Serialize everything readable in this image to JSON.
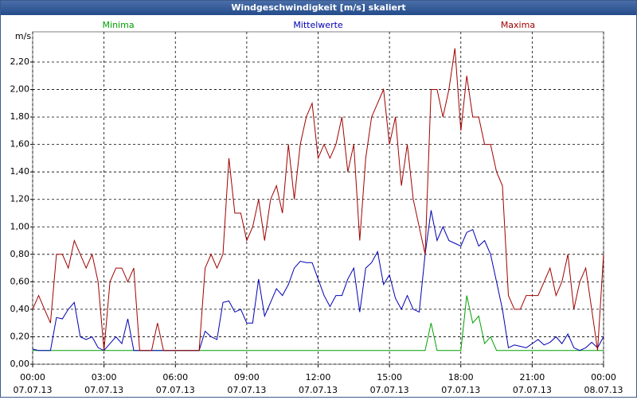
{
  "chart_data": {
    "type": "line",
    "title": "Windgeschwindigkeit [m/s] skaliert",
    "y_label": "m/s",
    "x": [
      0,
      0.25,
      0.5,
      0.75,
      1,
      1.25,
      1.5,
      1.75,
      2,
      2.25,
      2.5,
      2.75,
      3,
      3.25,
      3.5,
      3.75,
      4,
      4.25,
      4.5,
      4.75,
      5,
      5.25,
      5.5,
      5.75,
      6,
      6.25,
      6.5,
      6.75,
      7,
      7.25,
      7.5,
      7.75,
      8,
      8.25,
      8.5,
      8.75,
      9,
      9.25,
      9.5,
      9.75,
      10,
      10.25,
      10.5,
      10.75,
      11,
      11.25,
      11.5,
      11.75,
      12,
      12.25,
      12.5,
      12.75,
      13,
      13.25,
      13.5,
      13.75,
      14,
      14.25,
      14.5,
      14.75,
      15,
      15.25,
      15.5,
      15.75,
      16,
      16.25,
      16.5,
      16.75,
      17,
      17.25,
      17.5,
      17.75,
      18,
      18.25,
      18.5,
      18.75,
      19,
      19.25,
      19.5,
      19.75,
      20,
      20.25,
      20.5,
      20.75,
      21,
      21.25,
      21.5,
      21.75,
      22,
      22.25,
      22.5,
      22.75,
      23,
      23.25,
      23.5,
      23.75,
      24
    ],
    "series": [
      {
        "name": "Minima",
        "color": "#00a000",
        "values": [
          0.1,
          0.1,
          0.1,
          0.1,
          0.1,
          0.1,
          0.1,
          0.1,
          0.1,
          0.1,
          0.1,
          0.1,
          0.1,
          0.1,
          0.1,
          0.1,
          0.1,
          0.1,
          0.1,
          0.1,
          0.1,
          0.1,
          0.1,
          0.1,
          0.1,
          0.1,
          0.1,
          0.1,
          0.1,
          0.1,
          0.1,
          0.1,
          0.1,
          0.1,
          0.1,
          0.1,
          0.1,
          0.1,
          0.1,
          0.1,
          0.1,
          0.1,
          0.1,
          0.1,
          0.1,
          0.1,
          0.1,
          0.1,
          0.1,
          0.1,
          0.1,
          0.1,
          0.1,
          0.1,
          0.1,
          0.1,
          0.1,
          0.1,
          0.1,
          0.1,
          0.1,
          0.1,
          0.1,
          0.1,
          0.1,
          0.1,
          0.1,
          0.3,
          0.1,
          0.1,
          0.1,
          0.1,
          0.1,
          0.5,
          0.3,
          0.35,
          0.15,
          0.2,
          0.1,
          0.1,
          0.1,
          0.1,
          0.1,
          0.1,
          0.1,
          0.1,
          0.1,
          0.1,
          0.1,
          0.1,
          0.1,
          0.1,
          0.1,
          0.1,
          0.1,
          0.1,
          0.1
        ]
      },
      {
        "name": "Mittelwerte",
        "color": "#0000b4",
        "values": [
          0.11,
          0.1,
          0.1,
          0.1,
          0.34,
          0.33,
          0.4,
          0.45,
          0.2,
          0.18,
          0.2,
          0.12,
          0.1,
          0.15,
          0.2,
          0.15,
          0.33,
          0.1,
          0.1,
          0.1,
          0.1,
          0.1,
          0.1,
          0.1,
          0.1,
          0.1,
          0.1,
          0.1,
          0.1,
          0.24,
          0.2,
          0.18,
          0.45,
          0.46,
          0.38,
          0.4,
          0.3,
          0.3,
          0.62,
          0.35,
          0.45,
          0.55,
          0.5,
          0.58,
          0.7,
          0.75,
          0.74,
          0.74,
          0.62,
          0.5,
          0.42,
          0.5,
          0.5,
          0.62,
          0.7,
          0.38,
          0.7,
          0.74,
          0.82,
          0.58,
          0.65,
          0.48,
          0.4,
          0.5,
          0.4,
          0.38,
          0.8,
          1.12,
          0.9,
          1.0,
          0.9,
          0.88,
          0.86,
          0.96,
          0.98,
          0.86,
          0.9,
          0.8,
          0.6,
          0.4,
          0.12,
          0.14,
          0.13,
          0.12,
          0.15,
          0.18,
          0.14,
          0.16,
          0.2,
          0.15,
          0.22,
          0.12,
          0.1,
          0.12,
          0.16,
          0.12,
          0.2
        ]
      },
      {
        "name": "Maxima",
        "color": "#a00000",
        "values": [
          0.4,
          0.5,
          0.4,
          0.3,
          0.8,
          0.8,
          0.7,
          0.9,
          0.8,
          0.7,
          0.8,
          0.6,
          0.1,
          0.6,
          0.7,
          0.7,
          0.6,
          0.7,
          0.1,
          0.1,
          0.1,
          0.3,
          0.1,
          0.1,
          0.1,
          0.1,
          0.1,
          0.1,
          0.1,
          0.7,
          0.8,
          0.7,
          0.8,
          1.5,
          1.1,
          1.1,
          0.9,
          1.0,
          1.2,
          0.9,
          1.2,
          1.3,
          1.1,
          1.6,
          1.2,
          1.6,
          1.8,
          1.9,
          1.5,
          1.6,
          1.5,
          1.6,
          1.8,
          1.4,
          1.6,
          0.9,
          1.5,
          1.8,
          1.9,
          2.0,
          1.6,
          1.8,
          1.3,
          1.6,
          1.2,
          1.0,
          0.8,
          2.0,
          2.0,
          1.8,
          2.0,
          2.3,
          1.7,
          2.1,
          1.8,
          1.8,
          1.6,
          1.6,
          1.4,
          1.3,
          0.5,
          0.4,
          0.4,
          0.5,
          0.5,
          0.5,
          0.6,
          0.7,
          0.5,
          0.6,
          0.8,
          0.4,
          0.6,
          0.7,
          0.4,
          0.1,
          0.8
        ]
      }
    ],
    "xlim": [
      0,
      24
    ],
    "xticks": [
      {
        "value": 0,
        "label": "00:00"
      },
      {
        "value": 3,
        "label": "03:00"
      },
      {
        "value": 6,
        "label": "06:00"
      },
      {
        "value": 9,
        "label": "09:00"
      },
      {
        "value": 12,
        "label": "12:00"
      },
      {
        "value": 15,
        "label": "15:00"
      },
      {
        "value": 18,
        "label": "18:00"
      },
      {
        "value": 21,
        "label": "21:00"
      },
      {
        "value": 24,
        "label": "00:00"
      }
    ],
    "xtick_dates": [
      "07.07.13",
      "07.07.13",
      "07.07.13",
      "07.07.13",
      "07.07.13",
      "07.07.13",
      "07.07.13",
      "07.07.13",
      "08.07.13"
    ],
    "ylim": [
      0,
      2.42
    ],
    "yticks": [
      {
        "value": 0,
        "label": "0,00"
      },
      {
        "value": 0.2,
        "label": "0,20"
      },
      {
        "value": 0.4,
        "label": "0,40"
      },
      {
        "value": 0.6,
        "label": "0,60"
      },
      {
        "value": 0.8,
        "label": "0,80"
      },
      {
        "value": 1.0,
        "label": "1,00"
      },
      {
        "value": 1.2,
        "label": "1,20"
      },
      {
        "value": 1.4,
        "label": "1,40"
      },
      {
        "value": 1.6,
        "label": "1,60"
      },
      {
        "value": 1.8,
        "label": "1,80"
      },
      {
        "value": 2.0,
        "label": "2,00"
      },
      {
        "value": 2.2,
        "label": "2,20"
      }
    ],
    "grid": true
  }
}
